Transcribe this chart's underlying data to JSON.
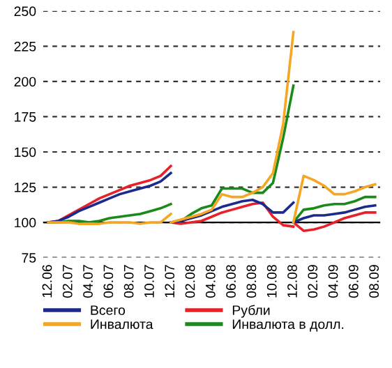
{
  "chart_data": {
    "type": "line",
    "categories": [
      "12.06",
      null,
      "02.07",
      null,
      "04.07",
      null,
      "06.07",
      null,
      "08.07",
      null,
      "10.07",
      null,
      "12.07",
      null,
      "02.08",
      null,
      "04.08",
      null,
      "06.08",
      null,
      "08.08",
      null,
      "10.08",
      null,
      "12.08",
      null,
      "02.09",
      null,
      "04.09",
      null,
      "06.09",
      null,
      "08.09"
    ],
    "series": [
      {
        "name": "Всего",
        "color": "#1c2a8c",
        "values": [
          100,
          101,
          104,
          108,
          111,
          114,
          117,
          120,
          122,
          124,
          126,
          129,
          135,
          null,
          null,
          null,
          null,
          null,
          null,
          null,
          null,
          null,
          null,
          null,
          null,
          null,
          null,
          null,
          null,
          null,
          null,
          null,
          null
        ]
      },
      {
        "name": "Рубли",
        "color": "#e8202a",
        "values": [
          100,
          101,
          105,
          109,
          113,
          117,
          120,
          123,
          126,
          128,
          130,
          133,
          140,
          null,
          null,
          null,
          null,
          null,
          null,
          null,
          null,
          null,
          null,
          null,
          null,
          null,
          null,
          null,
          null,
          null,
          null,
          null,
          null
        ]
      },
      {
        "name": "Инвалюта",
        "color": "#f5a623",
        "values": [
          100,
          100,
          100,
          99,
          99,
          99,
          100,
          100,
          100,
          99,
          100,
          100,
          106,
          null,
          null,
          null,
          null,
          null,
          null,
          null,
          null,
          null,
          null,
          null,
          null,
          null,
          null,
          null,
          null,
          null,
          null,
          null,
          null
        ]
      },
      {
        "name": "Инвалюта в долл.",
        "color": "#1a8a1a",
        "values": [
          100,
          100,
          101,
          101,
          100,
          101,
          103,
          104,
          105,
          106,
          108,
          110,
          113,
          null,
          null,
          null,
          null,
          null,
          null,
          null,
          null,
          null,
          null,
          null,
          null,
          null,
          null,
          null,
          null,
          null,
          null,
          null,
          null
        ]
      },
      {
        "color": "#1c2a8c",
        "values": [
          null,
          null,
          null,
          null,
          null,
          null,
          null,
          null,
          null,
          null,
          null,
          null,
          100,
          101,
          103,
          105,
          108,
          111,
          113,
          115,
          116,
          113,
          107,
          107,
          114,
          null,
          null,
          null,
          null,
          null,
          null,
          null,
          null
        ]
      },
      {
        "color": "#e8202a",
        "values": [
          null,
          null,
          null,
          null,
          null,
          null,
          null,
          null,
          null,
          null,
          null,
          null,
          100,
          99,
          100,
          101,
          104,
          107,
          109,
          111,
          113,
          114,
          104,
          98,
          97,
          null,
          null,
          null,
          null,
          null,
          null,
          null,
          null
        ]
      },
      {
        "color": "#f5a623",
        "values": [
          null,
          null,
          null,
          null,
          null,
          null,
          null,
          null,
          null,
          null,
          null,
          null,
          100,
          102,
          104,
          106,
          109,
          120,
          118,
          118,
          121,
          125,
          135,
          170,
          235,
          null,
          null,
          null,
          null,
          null,
          null,
          null,
          null
        ]
      },
      {
        "color": "#1a8a1a",
        "values": [
          null,
          null,
          null,
          null,
          null,
          null,
          null,
          null,
          null,
          null,
          null,
          null,
          100,
          101,
          106,
          110,
          112,
          124,
          124,
          124,
          121,
          121,
          128,
          160,
          197,
          null,
          null,
          null,
          null,
          null,
          null,
          null,
          null
        ]
      },
      {
        "color": "#1c2a8c",
        "values": [
          null,
          null,
          null,
          null,
          null,
          null,
          null,
          null,
          null,
          null,
          null,
          null,
          null,
          null,
          null,
          null,
          null,
          null,
          null,
          null,
          null,
          null,
          null,
          null,
          100,
          103,
          105,
          105,
          106,
          107,
          109,
          111,
          112
        ]
      },
      {
        "color": "#e8202a",
        "values": [
          null,
          null,
          null,
          null,
          null,
          null,
          null,
          null,
          null,
          null,
          null,
          null,
          null,
          null,
          null,
          null,
          null,
          null,
          null,
          null,
          null,
          null,
          null,
          null,
          100,
          94,
          95,
          97,
          100,
          103,
          105,
          107,
          107
        ]
      },
      {
        "color": "#f5a623",
        "values": [
          null,
          null,
          null,
          null,
          null,
          null,
          null,
          null,
          null,
          null,
          null,
          null,
          null,
          null,
          null,
          null,
          null,
          null,
          null,
          null,
          null,
          null,
          null,
          null,
          100,
          133,
          130,
          126,
          120,
          120,
          122,
          125,
          127
        ]
      },
      {
        "color": "#1a8a1a",
        "values": [
          null,
          null,
          null,
          null,
          null,
          null,
          null,
          null,
          null,
          null,
          null,
          null,
          null,
          null,
          null,
          null,
          null,
          null,
          null,
          null,
          null,
          null,
          null,
          null,
          100,
          109,
          110,
          112,
          113,
          113,
          115,
          118,
          118
        ]
      }
    ],
    "ylim": [
      75,
      250
    ],
    "yticks": [
      75,
      100,
      125,
      150,
      175,
      200,
      225,
      250
    ],
    "ref_lines": [
      {
        "axis": "y",
        "value": 100,
        "color": "#000000"
      }
    ],
    "grid": "y",
    "legend": "bottom",
    "line_style": "solid",
    "marker": "none"
  }
}
